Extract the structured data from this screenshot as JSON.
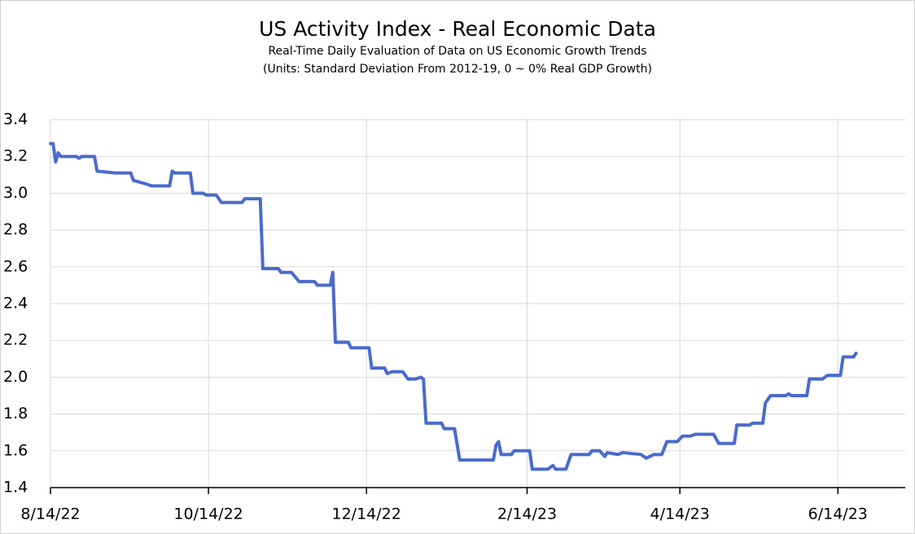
{
  "chart_data": {
    "type": "line",
    "title": "US Activity Index - Real Economic Data",
    "subtitle": "Real-Time Daily Evaluation of Data on US Economic Growth Trends",
    "subtitle2": "(Units: Standard Deviation From 2012-19, 0 ~ 0% Real GDP Growth)",
    "x": [
      "2022-08-14",
      "2022-08-15",
      "2022-08-16",
      "2022-08-17",
      "2022-08-18",
      "2022-08-24",
      "2022-08-25",
      "2022-08-26",
      "2022-08-31",
      "2022-09-01",
      "2022-09-08",
      "2022-09-14",
      "2022-09-15",
      "2022-09-20",
      "2022-09-22",
      "2022-09-29",
      "2022-09-30",
      "2022-10-01",
      "2022-10-07",
      "2022-10-08",
      "2022-10-12",
      "2022-10-13",
      "2022-10-17",
      "2022-10-19",
      "2022-10-27",
      "2022-10-28",
      "2022-11-03",
      "2022-11-04",
      "2022-11-10",
      "2022-11-11",
      "2022-11-15",
      "2022-11-18",
      "2022-11-24",
      "2022-11-25",
      "2022-11-30",
      "2022-12-01",
      "2022-12-02",
      "2022-12-07",
      "2022-12-08",
      "2022-12-15",
      "2022-12-16",
      "2022-12-21",
      "2022-12-22",
      "2022-12-24",
      "2022-12-28",
      "2022-12-30",
      "2023-01-02",
      "2023-01-04",
      "2023-01-05",
      "2023-01-06",
      "2023-01-12",
      "2023-01-13",
      "2023-01-17",
      "2023-01-19",
      "2023-01-28",
      "2023-02-01",
      "2023-02-02",
      "2023-02-03",
      "2023-02-04",
      "2023-02-08",
      "2023-02-09",
      "2023-02-15",
      "2023-02-16",
      "2023-02-22",
      "2023-02-24",
      "2023-02-25",
      "2023-03-01",
      "2023-03-03",
      "2023-03-10",
      "2023-03-11",
      "2023-03-14",
      "2023-03-16",
      "2023-03-17",
      "2023-03-21",
      "2023-03-23",
      "2023-03-30",
      "2023-04-01",
      "2023-04-04",
      "2023-04-07",
      "2023-04-09",
      "2023-04-13",
      "2023-04-15",
      "2023-04-18",
      "2023-04-20",
      "2023-04-27",
      "2023-04-29",
      "2023-05-05",
      "2023-05-06",
      "2023-05-11",
      "2023-05-12",
      "2023-05-16",
      "2023-05-17",
      "2023-05-19",
      "2023-05-25",
      "2023-05-26",
      "2023-05-27",
      "2023-06-02",
      "2023-06-03",
      "2023-06-08",
      "2023-06-10",
      "2023-06-15",
      "2023-06-16",
      "2023-06-20",
      "2023-06-21"
    ],
    "series": [
      {
        "name": "US Activity Index",
        "color": "#4a6bcc",
        "values": [
          3.27,
          3.27,
          3.17,
          3.22,
          3.2,
          3.2,
          3.19,
          3.2,
          3.2,
          3.12,
          3.11,
          3.11,
          3.07,
          3.05,
          3.04,
          3.04,
          3.12,
          3.11,
          3.11,
          3.0,
          3.0,
          2.99,
          2.99,
          2.95,
          2.95,
          2.97,
          2.97,
          2.59,
          2.59,
          2.57,
          2.57,
          2.52,
          2.52,
          2.5,
          2.5,
          2.57,
          2.19,
          2.19,
          2.16,
          2.16,
          2.05,
          2.05,
          2.02,
          2.03,
          2.03,
          1.99,
          1.99,
          2.0,
          1.99,
          1.75,
          1.75,
          1.72,
          1.72,
          1.55,
          1.55,
          1.55,
          1.63,
          1.65,
          1.58,
          1.58,
          1.6,
          1.6,
          1.5,
          1.5,
          1.52,
          1.5,
          1.5,
          1.58,
          1.58,
          1.6,
          1.6,
          1.57,
          1.59,
          1.58,
          1.59,
          1.58,
          1.56,
          1.58,
          1.58,
          1.65,
          1.65,
          1.68,
          1.68,
          1.69,
          1.69,
          1.64,
          1.64,
          1.74,
          1.74,
          1.75,
          1.75,
          1.86,
          1.9,
          1.9,
          1.91,
          1.9,
          1.9,
          1.99,
          1.99,
          2.01,
          2.01,
          2.11,
          2.11,
          2.13
        ]
      }
    ],
    "xlim": [
      "2022-08-14",
      "2023-07-10"
    ],
    "xticks": [
      {
        "value": "2022-08-14",
        "label": "8/14/22"
      },
      {
        "value": "2022-10-14",
        "label": "10/14/22"
      },
      {
        "value": "2022-12-14",
        "label": "12/14/22"
      },
      {
        "value": "2023-02-14",
        "label": "2/14/23"
      },
      {
        "value": "2023-04-14",
        "label": "4/14/23"
      },
      {
        "value": "2023-06-14",
        "label": "6/14/23"
      }
    ],
    "ylim": [
      1.4,
      3.4
    ],
    "yticks": [
      1.4,
      1.6,
      1.8,
      {
        "value": 2,
        "label": "2.0"
      },
      2.2,
      2.4,
      2.6,
      2.8,
      {
        "value": 3,
        "label": "3.0"
      },
      3.2,
      3.4
    ],
    "grid": true
  }
}
